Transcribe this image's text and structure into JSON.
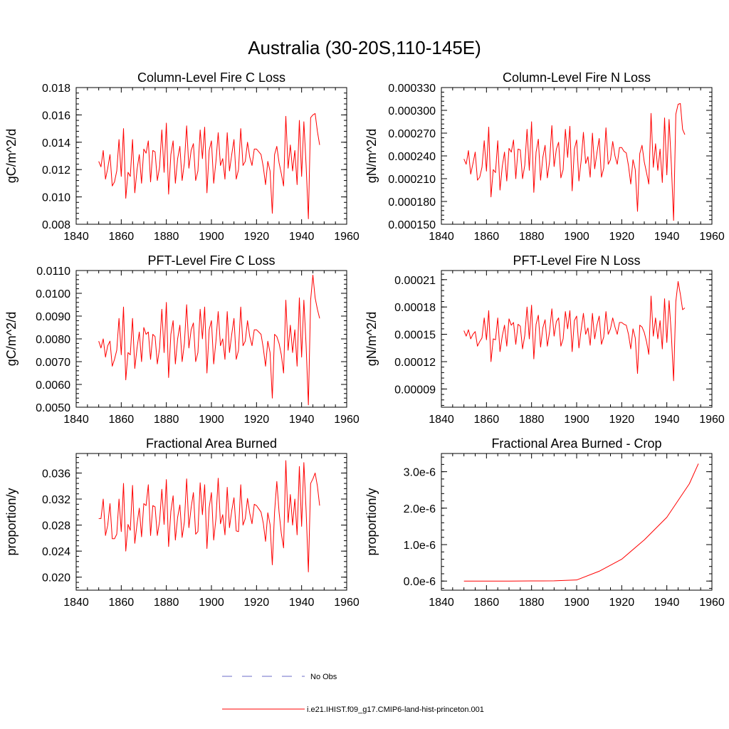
{
  "figure": {
    "title": "Australia (30-20S,110-145E)",
    "line_color": "#ff0000",
    "obs_color": "#6b6bc8",
    "legend": {
      "obs_label": "No Obs",
      "model_label": "i.e21.IHIST.f09_g17.CMIP6-land-hist-princeton.001"
    }
  },
  "chart_data": [
    {
      "id": "col-c",
      "type": "line",
      "title": "Column-Level Fire C Loss",
      "ylabel": "gC/m^2/d",
      "xlim": [
        1840,
        1960
      ],
      "ylim": [
        0.008,
        0.018
      ],
      "xticks": [
        1840,
        1860,
        1880,
        1900,
        1920,
        1940,
        1960
      ],
      "yticks": [
        0.008,
        0.01,
        0.012,
        0.014,
        0.016,
        0.018
      ],
      "ytick_labels": [
        "0.008",
        "0.010",
        "0.012",
        "0.014",
        "0.016",
        "0.018"
      ],
      "series": [
        {
          "x_start": 1850,
          "x_step": 1,
          "values": [
            0.0126,
            0.0122,
            0.0134,
            0.0113,
            0.0121,
            0.0131,
            0.0108,
            0.0111,
            0.0119,
            0.0142,
            0.0115,
            0.015,
            0.0099,
            0.0118,
            0.0115,
            0.0142,
            0.0103,
            0.012,
            0.0131,
            0.011,
            0.0135,
            0.0132,
            0.0141,
            0.0111,
            0.0134,
            0.0133,
            0.0112,
            0.0122,
            0.0149,
            0.0118,
            0.0154,
            0.0102,
            0.0131,
            0.0141,
            0.011,
            0.0128,
            0.0137,
            0.0112,
            0.0125,
            0.0152,
            0.0121,
            0.0134,
            0.0139,
            0.0112,
            0.0119,
            0.0149,
            0.0128,
            0.0151,
            0.0103,
            0.0134,
            0.0141,
            0.011,
            0.0126,
            0.0147,
            0.0123,
            0.0128,
            0.0113,
            0.0147,
            0.0119,
            0.0131,
            0.0142,
            0.0113,
            0.012,
            0.015,
            0.0123,
            0.0126,
            0.014,
            0.0129,
            0.0123,
            0.0135,
            0.0135,
            0.0133,
            0.0131,
            0.0122,
            0.0109,
            0.0126,
            0.0119,
            0.0088,
            0.0131,
            0.0137,
            0.0125,
            0.0117,
            0.0108,
            0.0159,
            0.0121,
            0.0138,
            0.0119,
            0.0134,
            0.0109,
            0.0156,
            0.0115,
            0.0155,
            0.0123,
            0.0084,
            0.0158,
            0.016,
            0.0161,
            0.0148,
            0.0138
          ]
        }
      ]
    },
    {
      "id": "col-n",
      "type": "line",
      "title": "Column-Level Fire N Loss",
      "ylabel": "gN/m^2/d",
      "xlim": [
        1840,
        1960
      ],
      "ylim": [
        0.00015,
        0.00033
      ],
      "xticks": [
        1840,
        1860,
        1880,
        1900,
        1920,
        1940,
        1960
      ],
      "yticks": [
        0.00015,
        0.00018,
        0.00021,
        0.00024,
        0.00027,
        0.0003,
        0.00033
      ],
      "ytick_labels": [
        "0.000150",
        "0.000180",
        "0.000210",
        "0.000240",
        "0.000270",
        "0.000300",
        "0.000330"
      ],
      "series": [
        {
          "x_start": 1850,
          "x_step": 1,
          "values": [
            0.000236,
            0.000229,
            0.000247,
            0.000216,
            0.00023,
            0.000245,
            0.000208,
            0.000212,
            0.000225,
            0.00026,
            0.00022,
            0.000278,
            0.000186,
            0.000222,
            0.000218,
            0.00026,
            0.000195,
            0.000226,
            0.000245,
            0.000207,
            0.00025,
            0.000245,
            0.000261,
            0.00021,
            0.000249,
            0.000248,
            0.00021,
            0.000228,
            0.000275,
            0.000221,
            0.000285,
            0.000192,
            0.000245,
            0.000262,
            0.000208,
            0.000238,
            0.000254,
            0.000211,
            0.000233,
            0.00028,
            0.000226,
            0.000249,
            0.000258,
            0.000211,
            0.000222,
            0.000275,
            0.000238,
            0.000279,
            0.000194,
            0.000249,
            0.000261,
            0.000207,
            0.000234,
            0.000271,
            0.00023,
            0.000239,
            0.000212,
            0.00027,
            0.000223,
            0.000244,
            0.000263,
            0.000212,
            0.000224,
            0.000277,
            0.000229,
            0.000235,
            0.000259,
            0.00024,
            0.000229,
            0.000251,
            0.000251,
            0.000246,
            0.000244,
            0.000227,
            0.000203,
            0.000235,
            0.000222,
            0.000167,
            0.000243,
            0.000254,
            0.000232,
            0.000218,
            0.000203,
            0.000296,
            0.000225,
            0.000256,
            0.000221,
            0.000249,
            0.000205,
            0.00029,
            0.000215,
            0.000288,
            0.000229,
            0.000155,
            0.000295,
            0.000308,
            0.000309,
            0.000275,
            0.000268
          ]
        }
      ]
    },
    {
      "id": "pft-c",
      "type": "line",
      "title": "PFT-Level Fire C Loss",
      "ylabel": "gC/m^2/d",
      "xlim": [
        1840,
        1960
      ],
      "ylim": [
        0.005,
        0.011
      ],
      "xticks": [
        1840,
        1860,
        1880,
        1900,
        1920,
        1940,
        1960
      ],
      "yticks": [
        0.005,
        0.006,
        0.007,
        0.008,
        0.009,
        0.01,
        0.011
      ],
      "ytick_labels": [
        "0.0050",
        "0.0060",
        "0.0070",
        "0.0080",
        "0.0090",
        "0.0100",
        "0.0110"
      ],
      "series": [
        {
          "x_start": 1850,
          "x_step": 1,
          "values": [
            0.0079,
            0.0076,
            0.008,
            0.0072,
            0.0077,
            0.0079,
            0.0068,
            0.0071,
            0.0075,
            0.0089,
            0.0073,
            0.0094,
            0.0062,
            0.0074,
            0.0073,
            0.0089,
            0.0067,
            0.0076,
            0.0083,
            0.007,
            0.0085,
            0.0082,
            0.0083,
            0.0071,
            0.0082,
            0.0081,
            0.0069,
            0.0076,
            0.0093,
            0.0074,
            0.0096,
            0.0063,
            0.0082,
            0.0088,
            0.0069,
            0.008,
            0.0086,
            0.007,
            0.0078,
            0.0095,
            0.0076,
            0.0084,
            0.0087,
            0.007,
            0.0074,
            0.0093,
            0.008,
            0.0094,
            0.0065,
            0.0084,
            0.0088,
            0.0069,
            0.0079,
            0.0092,
            0.0077,
            0.008,
            0.0071,
            0.0092,
            0.0074,
            0.0082,
            0.0089,
            0.0071,
            0.0075,
            0.0094,
            0.0077,
            0.0079,
            0.0088,
            0.0081,
            0.0077,
            0.0084,
            0.0084,
            0.0083,
            0.0082,
            0.0076,
            0.0068,
            0.0079,
            0.0074,
            0.0054,
            0.0082,
            0.0081,
            0.0078,
            0.0073,
            0.0065,
            0.0097,
            0.0075,
            0.0086,
            0.0074,
            0.0084,
            0.0068,
            0.0098,
            0.0072,
            0.0097,
            0.0077,
            0.0051,
            0.0097,
            0.0108,
            0.0098,
            0.0093,
            0.0089
          ]
        }
      ]
    },
    {
      "id": "pft-n",
      "type": "line",
      "title": "PFT-Level Fire N Loss",
      "ylabel": "gN/m^2/d",
      "xlim": [
        1840,
        1960
      ],
      "ylim": [
        7e-05,
        0.00022
      ],
      "xticks": [
        1840,
        1860,
        1880,
        1900,
        1920,
        1940,
        1960
      ],
      "yticks": [
        9e-05,
        0.00012,
        0.00015,
        0.00018,
        0.00021
      ],
      "ytick_labels": [
        "0.00009",
        "0.00012",
        "0.00015",
        "0.00018",
        "0.00021"
      ],
      "series": [
        {
          "x_start": 1850,
          "x_step": 1,
          "values": [
            0.000154,
            0.000148,
            0.000155,
            0.000145,
            0.00015,
            0.000153,
            0.000137,
            0.000142,
            0.000146,
            0.000168,
            0.000144,
            0.000176,
            0.00012,
            0.000145,
            0.000144,
            0.000168,
            0.000131,
            0.000148,
            0.00016,
            0.000137,
            0.000167,
            0.00016,
            0.000163,
            0.000139,
            0.000161,
            0.000159,
            0.000134,
            0.000149,
            0.00018,
            0.000145,
            0.000182,
            0.000123,
            0.000161,
            0.000171,
            0.000136,
            0.000157,
            0.000166,
            0.000137,
            0.000153,
            0.000178,
            0.000148,
            0.000164,
            0.000168,
            0.000137,
            0.000145,
            0.000175,
            0.000156,
            0.000176,
            0.000131,
            0.000165,
            0.00017,
            0.000135,
            0.000155,
            0.000173,
            0.00015,
            0.000157,
            0.000138,
            0.000173,
            0.000145,
            0.00016,
            0.00017,
            0.000139,
            0.000147,
            0.000175,
            0.00015,
            0.000156,
            0.000168,
            0.000158,
            0.00015,
            0.000163,
            0.000163,
            0.000161,
            0.00016,
            0.00015,
            0.000134,
            0.000156,
            0.000146,
            0.000107,
            0.00016,
            0.000158,
            0.000152,
            0.000142,
            0.000128,
            0.000192,
            0.000148,
            0.000168,
            0.000145,
            0.000165,
            0.000134,
            0.000189,
            0.000141,
            0.000187,
            0.00015,
            9.9e-05,
            0.000186,
            0.000208,
            0.000194,
            0.000177,
            0.000179
          ]
        }
      ]
    },
    {
      "id": "frac",
      "type": "line",
      "title": "Fractional Area Burned",
      "ylabel": "proportion/y",
      "xlim": [
        1840,
        1960
      ],
      "ylim": [
        0.018,
        0.039
      ],
      "xticks": [
        1840,
        1860,
        1880,
        1900,
        1920,
        1940,
        1960
      ],
      "yticks": [
        0.02,
        0.024,
        0.028,
        0.032,
        0.036
      ],
      "ytick_labels": [
        "0.020",
        "0.024",
        "0.028",
        "0.032",
        "0.036"
      ],
      "series": [
        {
          "x_start": 1850,
          "x_step": 1,
          "values": [
            0.029,
            0.029,
            0.032,
            0.0264,
            0.028,
            0.0313,
            0.0259,
            0.0259,
            0.0266,
            0.032,
            0.027,
            0.0344,
            0.024,
            0.0281,
            0.0272,
            0.0341,
            0.0252,
            0.0282,
            0.0306,
            0.0262,
            0.0313,
            0.031,
            0.0342,
            0.0264,
            0.031,
            0.0308,
            0.0264,
            0.0286,
            0.0335,
            0.0281,
            0.035,
            0.0247,
            0.0301,
            0.0325,
            0.0257,
            0.0292,
            0.0311,
            0.0261,
            0.0285,
            0.0351,
            0.0276,
            0.0307,
            0.033,
            0.0266,
            0.027,
            0.0345,
            0.0296,
            0.0342,
            0.0244,
            0.0307,
            0.033,
            0.0257,
            0.029,
            0.0352,
            0.0282,
            0.0296,
            0.0265,
            0.0338,
            0.0276,
            0.0302,
            0.0322,
            0.0271,
            0.027,
            0.0342,
            0.028,
            0.029,
            0.0321,
            0.0298,
            0.0282,
            0.0312,
            0.031,
            0.0305,
            0.03,
            0.0283,
            0.0255,
            0.0299,
            0.0281,
            0.0219,
            0.03,
            0.0347,
            0.03,
            0.0267,
            0.0245,
            0.0379,
            0.0284,
            0.0327,
            0.028,
            0.032,
            0.0265,
            0.037,
            0.0278,
            0.0376,
            0.0302,
            0.0208,
            0.0344,
            0.0351,
            0.036,
            0.034,
            0.031
          ]
        }
      ]
    },
    {
      "id": "crop",
      "type": "line",
      "title": "Fractional Area Burned - Crop",
      "ylabel": "proportion/y",
      "xlim": [
        1840,
        1960
      ],
      "ylim": [
        -2.5e-07,
        3.5e-06
      ],
      "xticks": [
        1840,
        1860,
        1880,
        1900,
        1920,
        1940,
        1960
      ],
      "yticks": [
        0,
        1e-06,
        2e-06,
        3e-06
      ],
      "ytick_labels": [
        "0.0e-6",
        "1.0e-6",
        "2.0e-6",
        "3.0e-6"
      ],
      "series": [
        {
          "x": [
            1850,
            1860,
            1870,
            1880,
            1890,
            1900,
            1910,
            1920,
            1930,
            1940,
            1950,
            1954
          ],
          "values": [
            0,
            0,
            0,
            3e-09,
            6e-09,
            3e-08,
            2.7e-07,
            6e-07,
            1.13e-06,
            1.75e-06,
            2.67e-06,
            3.22e-06
          ]
        }
      ]
    }
  ]
}
